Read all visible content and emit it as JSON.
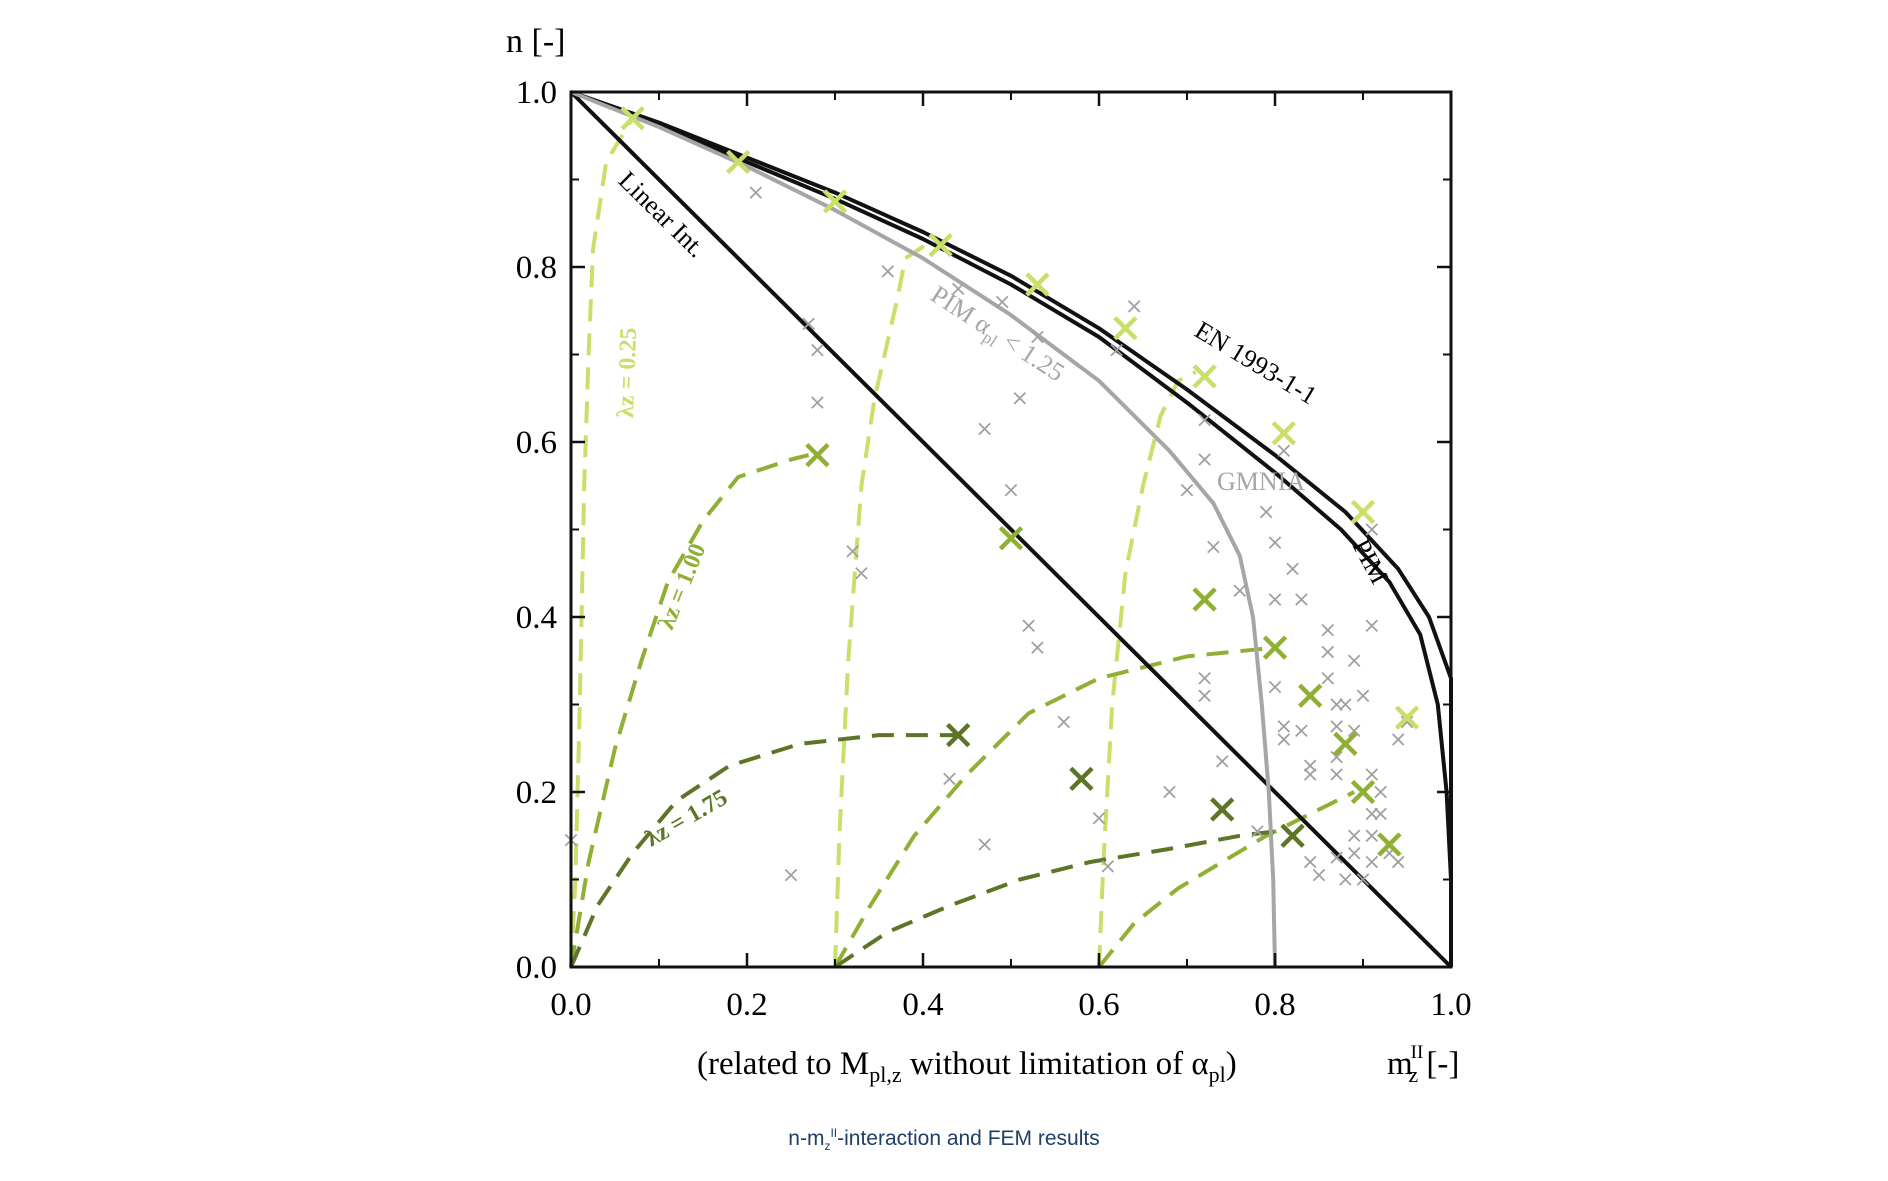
{
  "caption": {
    "prefix": "n-m",
    "sub": "z",
    "sup": "II",
    "suffix": "-interaction and FEM results"
  },
  "chart_data": {
    "type": "line",
    "title": "",
    "ylabel": "n [-]",
    "xlabel": {
      "prefix": "(related to M",
      "sub1": "pl,z",
      "mid": " without limitation of α",
      "sub2": "pl",
      "end": ")",
      "symbol": "m",
      "symbol_sup": "II",
      "symbol_sub": "z",
      "unit": " [-]"
    },
    "xlim": [
      0,
      1.0
    ],
    "ylim": [
      0,
      1.0
    ],
    "x_ticks": [
      "0.0",
      "0.2",
      "0.4",
      "0.6",
      "0.8",
      "1.0"
    ],
    "y_ticks": [
      "0.0",
      "0.2",
      "0.4",
      "0.6",
      "0.8",
      "1.0"
    ],
    "grid": false,
    "colors": {
      "black": "#111111",
      "gray": "#a6a6a6",
      "light_green": "#c8e06a",
      "mid_green": "#8fb035",
      "dark_green": "#5d7526",
      "scatter_gray": "#a0a0a0"
    },
    "series": [
      {
        "name": "EN 1993-1-1",
        "label": "EN 1993-1-1",
        "color": "#111111",
        "points": [
          [
            0.0,
            1.0
          ],
          [
            0.1,
            0.965
          ],
          [
            0.2,
            0.925
          ],
          [
            0.3,
            0.885
          ],
          [
            0.4,
            0.84
          ],
          [
            0.5,
            0.79
          ],
          [
            0.6,
            0.73
          ],
          [
            0.7,
            0.66
          ],
          [
            0.8,
            0.585
          ],
          [
            0.88,
            0.52
          ],
          [
            0.94,
            0.455
          ],
          [
            0.975,
            0.4
          ],
          [
            1.0,
            0.33
          ],
          [
            1.0,
            0.0
          ]
        ]
      },
      {
        "name": "PIM",
        "label": "PIM",
        "color": "#111111",
        "points": [
          [
            0.0,
            1.0
          ],
          [
            0.1,
            0.963
          ],
          [
            0.2,
            0.92
          ],
          [
            0.3,
            0.878
          ],
          [
            0.4,
            0.832
          ],
          [
            0.5,
            0.78
          ],
          [
            0.6,
            0.72
          ],
          [
            0.7,
            0.645
          ],
          [
            0.8,
            0.565
          ],
          [
            0.875,
            0.5
          ],
          [
            0.93,
            0.44
          ],
          [
            0.965,
            0.38
          ],
          [
            0.985,
            0.3
          ],
          [
            0.995,
            0.2
          ],
          [
            1.0,
            0.1
          ],
          [
            1.0,
            0.0
          ]
        ]
      },
      {
        "name": "Linear Int.",
        "label": "Linear Int.",
        "color": "#111111",
        "points": [
          [
            0.0,
            1.0
          ],
          [
            1.0,
            0.0
          ]
        ]
      },
      {
        "name": "PIM αpl < 1.25",
        "label_main": "PIM α",
        "label_sub": "pl",
        "label_end": " < 1.25",
        "color": "#a6a6a6",
        "points": [
          [
            0.0,
            1.0
          ],
          [
            0.1,
            0.96
          ],
          [
            0.2,
            0.915
          ],
          [
            0.3,
            0.865
          ],
          [
            0.4,
            0.81
          ],
          [
            0.5,
            0.745
          ],
          [
            0.6,
            0.67
          ],
          [
            0.68,
            0.59
          ],
          [
            0.73,
            0.53
          ],
          [
            0.76,
            0.47
          ],
          [
            0.775,
            0.4
          ],
          [
            0.785,
            0.3
          ],
          [
            0.793,
            0.2
          ],
          [
            0.798,
            0.1
          ],
          [
            0.8,
            0.0
          ]
        ]
      },
      {
        "name": "λz = 0.25",
        "label": "λz = 0.25",
        "color": "#c8e06a",
        "curves": [
          [
            [
              0.0,
              0.0
            ],
            [
              0.005,
              0.1
            ],
            [
              0.01,
              0.3
            ],
            [
              0.015,
              0.55
            ],
            [
              0.02,
              0.7
            ],
            [
              0.025,
              0.82
            ],
            [
              0.04,
              0.92
            ],
            [
              0.07,
              0.97
            ]
          ],
          [
            [
              0.3,
              0.0
            ],
            [
              0.305,
              0.15
            ],
            [
              0.315,
              0.35
            ],
            [
              0.33,
              0.55
            ],
            [
              0.345,
              0.65
            ],
            [
              0.37,
              0.76
            ],
            [
              0.38,
              0.81
            ],
            [
              0.41,
              0.83
            ]
          ],
          [
            [
              0.6,
              0.0
            ],
            [
              0.605,
              0.12
            ],
            [
              0.615,
              0.3
            ],
            [
              0.63,
              0.45
            ],
            [
              0.65,
              0.55
            ],
            [
              0.67,
              0.63
            ],
            [
              0.69,
              0.67
            ],
            [
              0.71,
              0.68
            ]
          ]
        ]
      },
      {
        "name": "λz = 1.00",
        "label": "λz = 1.00",
        "color": "#8fb035",
        "curves": [
          [
            [
              0.0,
              0.0
            ],
            [
              0.02,
              0.12
            ],
            [
              0.05,
              0.25
            ],
            [
              0.08,
              0.35
            ],
            [
              0.11,
              0.44
            ],
            [
              0.15,
              0.51
            ],
            [
              0.19,
              0.56
            ],
            [
              0.25,
              0.58
            ],
            [
              0.27,
              0.585
            ]
          ],
          [
            [
              0.3,
              0.0
            ],
            [
              0.34,
              0.07
            ],
            [
              0.39,
              0.15
            ],
            [
              0.45,
              0.22
            ],
            [
              0.52,
              0.29
            ],
            [
              0.6,
              0.33
            ],
            [
              0.7,
              0.355
            ],
            [
              0.8,
              0.365
            ]
          ],
          [
            [
              0.6,
              0.0
            ],
            [
              0.64,
              0.05
            ],
            [
              0.69,
              0.09
            ],
            [
              0.74,
              0.12
            ],
            [
              0.79,
              0.15
            ],
            [
              0.84,
              0.175
            ],
            [
              0.89,
              0.2
            ]
          ]
        ]
      },
      {
        "name": "λz = 1.75",
        "label": "λz = 1.75",
        "color": "#5d7526",
        "curves": [
          [
            [
              0.0,
              0.0
            ],
            [
              0.03,
              0.07
            ],
            [
              0.07,
              0.13
            ],
            [
              0.12,
              0.19
            ],
            [
              0.18,
              0.23
            ],
            [
              0.26,
              0.255
            ],
            [
              0.35,
              0.265
            ],
            [
              0.44,
              0.265
            ]
          ],
          [
            [
              0.3,
              0.0
            ],
            [
              0.36,
              0.04
            ],
            [
              0.43,
              0.07
            ],
            [
              0.51,
              0.1
            ],
            [
              0.59,
              0.12
            ],
            [
              0.68,
              0.135
            ],
            [
              0.76,
              0.15
            ],
            [
              0.8,
              0.155
            ]
          ]
        ]
      }
    ],
    "fem_markers": {
      "light_green": [
        [
          0.07,
          0.97
        ],
        [
          0.19,
          0.92
        ],
        [
          0.3,
          0.875
        ],
        [
          0.42,
          0.825
        ],
        [
          0.53,
          0.78
        ],
        [
          0.63,
          0.73
        ],
        [
          0.72,
          0.675
        ],
        [
          0.81,
          0.61
        ],
        [
          0.9,
          0.52
        ],
        [
          0.95,
          0.285
        ]
      ],
      "mid_green": [
        [
          0.28,
          0.585
        ],
        [
          0.5,
          0.49
        ],
        [
          0.72,
          0.42
        ],
        [
          0.8,
          0.365
        ],
        [
          0.84,
          0.31
        ],
        [
          0.88,
          0.255
        ],
        [
          0.9,
          0.2
        ],
        [
          0.93,
          0.14
        ]
      ],
      "dark_green": [
        [
          0.44,
          0.265
        ],
        [
          0.58,
          0.215
        ],
        [
          0.74,
          0.18
        ],
        [
          0.82,
          0.15
        ]
      ],
      "gray": [
        [
          0.0,
          0.145
        ],
        [
          0.21,
          0.885
        ],
        [
          0.25,
          0.105
        ],
        [
          0.27,
          0.735
        ],
        [
          0.28,
          0.705
        ],
        [
          0.28,
          0.645
        ],
        [
          0.32,
          0.475
        ],
        [
          0.33,
          0.45
        ],
        [
          0.36,
          0.795
        ],
        [
          0.43,
          0.215
        ],
        [
          0.44,
          0.775
        ],
        [
          0.47,
          0.14
        ],
        [
          0.47,
          0.615
        ],
        [
          0.49,
          0.76
        ],
        [
          0.5,
          0.545
        ],
        [
          0.51,
          0.65
        ],
        [
          0.52,
          0.39
        ],
        [
          0.53,
          0.365
        ],
        [
          0.53,
          0.72
        ],
        [
          0.56,
          0.28
        ],
        [
          0.6,
          0.17
        ],
        [
          0.61,
          0.115
        ],
        [
          0.62,
          0.705
        ],
        [
          0.64,
          0.755
        ],
        [
          0.68,
          0.2
        ],
        [
          0.7,
          0.545
        ],
        [
          0.72,
          0.58
        ],
        [
          0.72,
          0.625
        ],
        [
          0.72,
          0.33
        ],
        [
          0.72,
          0.31
        ],
        [
          0.73,
          0.48
        ],
        [
          0.74,
          0.235
        ],
        [
          0.76,
          0.43
        ],
        [
          0.78,
          0.155
        ],
        [
          0.79,
          0.52
        ],
        [
          0.8,
          0.485
        ],
        [
          0.8,
          0.42
        ],
        [
          0.8,
          0.32
        ],
        [
          0.81,
          0.275
        ],
        [
          0.81,
          0.26
        ],
        [
          0.81,
          0.59
        ],
        [
          0.82,
          0.455
        ],
        [
          0.83,
          0.42
        ],
        [
          0.83,
          0.27
        ],
        [
          0.84,
          0.23
        ],
        [
          0.84,
          0.22
        ],
        [
          0.84,
          0.12
        ],
        [
          0.85,
          0.105
        ],
        [
          0.86,
          0.385
        ],
        [
          0.86,
          0.36
        ],
        [
          0.86,
          0.33
        ],
        [
          0.87,
          0.3
        ],
        [
          0.87,
          0.275
        ],
        [
          0.87,
          0.24
        ],
        [
          0.87,
          0.22
        ],
        [
          0.87,
          0.125
        ],
        [
          0.88,
          0.3
        ],
        [
          0.88,
          0.1
        ],
        [
          0.89,
          0.35
        ],
        [
          0.89,
          0.27
        ],
        [
          0.89,
          0.15
        ],
        [
          0.89,
          0.13
        ],
        [
          0.9,
          0.31
        ],
        [
          0.9,
          0.1
        ],
        [
          0.91,
          0.5
        ],
        [
          0.91,
          0.39
        ],
        [
          0.91,
          0.22
        ],
        [
          0.91,
          0.175
        ],
        [
          0.91,
          0.15
        ],
        [
          0.91,
          0.12
        ],
        [
          0.92,
          0.2
        ],
        [
          0.92,
          0.175
        ],
        [
          0.93,
          0.13
        ],
        [
          0.94,
          0.12
        ],
        [
          0.94,
          0.26
        ],
        [
          0.95,
          0.28
        ]
      ]
    }
  }
}
